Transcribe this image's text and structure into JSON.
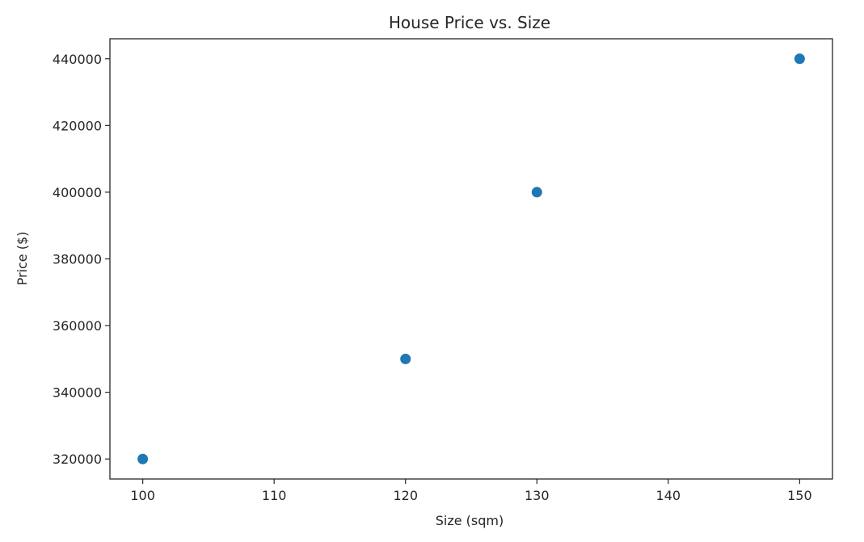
{
  "chart_data": {
    "type": "scatter",
    "title": "House Price vs. Size",
    "xlabel": "Size (sqm)",
    "ylabel": "Price ($)",
    "xlim": [
      97.5,
      152.5
    ],
    "ylim": [
      314000,
      446000
    ],
    "xticks": [
      100,
      110,
      120,
      130,
      140,
      150
    ],
    "yticks": [
      320000,
      340000,
      360000,
      380000,
      400000,
      420000,
      440000
    ],
    "grid": false,
    "marker_color": "#1f77b4",
    "points": [
      {
        "x": 100,
        "y": 320000
      },
      {
        "x": 120,
        "y": 350000
      },
      {
        "x": 130,
        "y": 400000
      },
      {
        "x": 150,
        "y": 440000
      }
    ]
  }
}
